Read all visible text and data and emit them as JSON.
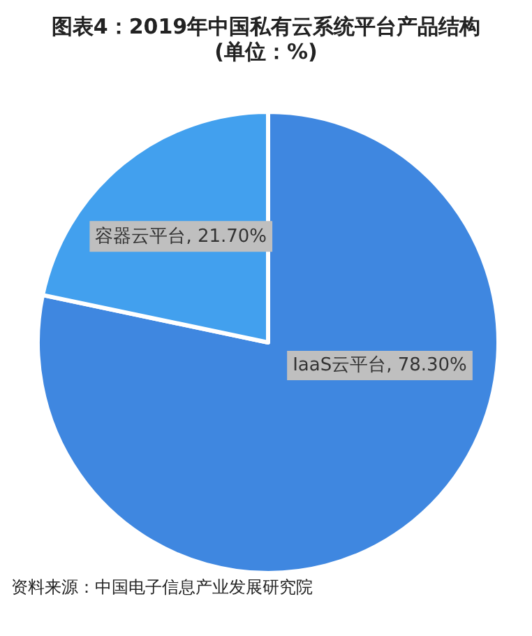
{
  "chart_data": {
    "type": "pie",
    "title": "图表4：2019年中国私有云系统平台产品结构",
    "subtitle": "(单位：%)",
    "categories": [
      "IaaS云平台",
      "容器云平台"
    ],
    "values": [
      78.3,
      21.7
    ],
    "colors": [
      "#3f87e0",
      "#42a0ee"
    ],
    "value_labels": [
      "78.30%",
      "21.70%"
    ],
    "annotations": [
      "资料来源：中国电子信息产业发展研究院"
    ],
    "legend": false
  }
}
